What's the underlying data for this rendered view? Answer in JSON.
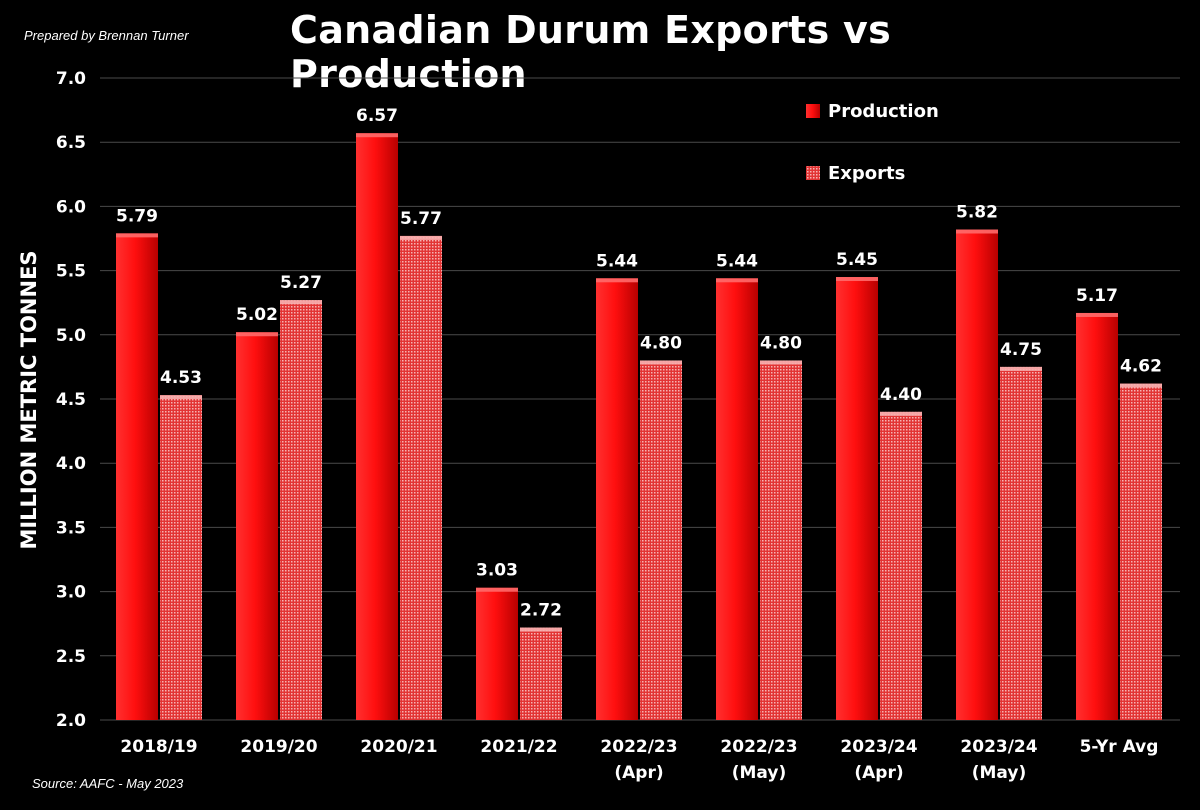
{
  "header": {
    "credit": "Prepared by Brennan Turner"
  },
  "footer": {
    "source": "Source: AAFC - May 2023"
  },
  "colors": {
    "production": "#e60000",
    "exports": "#e98a8a",
    "grid": "#4a4a4a",
    "text": "#ffffff"
  },
  "chart_data": {
    "type": "bar",
    "title": "Canadian Durum Exports vs Production",
    "ylabel": "MILLION METRIC TONNES",
    "xlabel": "",
    "ylim": [
      2.0,
      7.0
    ],
    "yticks": [
      "2.0",
      "2.5",
      "3.0",
      "3.5",
      "4.0",
      "4.5",
      "5.0",
      "5.5",
      "6.0",
      "6.5",
      "7.0"
    ],
    "grid": true,
    "legend_position": "top-right",
    "categories": [
      [
        "2018/19"
      ],
      [
        "2019/20"
      ],
      [
        "2020/21"
      ],
      [
        "2021/22"
      ],
      [
        "2022/23",
        "(Apr)"
      ],
      [
        "2022/23",
        "(May)"
      ],
      [
        "2023/24",
        "(Apr)"
      ],
      [
        "2023/24",
        "(May)"
      ],
      [
        "5-Yr Avg"
      ]
    ],
    "series": [
      {
        "name": "Production",
        "values": [
          5.79,
          5.02,
          6.57,
          3.03,
          5.44,
          5.44,
          5.45,
          5.82,
          5.17
        ],
        "labels": [
          "5.79",
          "5.02",
          "6.57",
          "3.03",
          "5.44",
          "5.44",
          "5.45",
          "5.82",
          "5.17"
        ]
      },
      {
        "name": "Exports",
        "values": [
          4.53,
          5.27,
          5.77,
          2.72,
          4.8,
          4.8,
          4.4,
          4.75,
          4.62
        ],
        "labels": [
          "4.53",
          "5.27",
          "5.77",
          "2.72",
          "4.80",
          "4.80",
          "4.40",
          "4.75",
          "4.62"
        ]
      }
    ]
  }
}
